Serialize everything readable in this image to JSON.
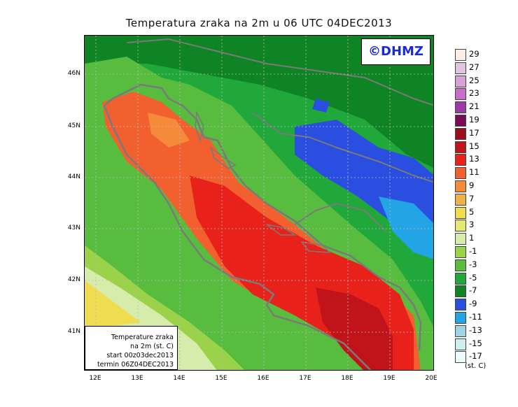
{
  "title": "Temperatura zraka na 2m u 06 UTC 04DEC2013",
  "logo": "©DHMZ",
  "info": {
    "line1": "Temperature zraka",
    "line2": "na 2m (st. C)",
    "line3": "start 00z03dec2013",
    "line4": "termin 06Z04DEC2013"
  },
  "axes": {
    "lat_labels": [
      "46N",
      "45N",
      "44N",
      "43N",
      "42N",
      "41N"
    ],
    "lon_labels": [
      "12E",
      "13E",
      "14E",
      "15E",
      "16E",
      "17E",
      "18E",
      "19E",
      "20E"
    ]
  },
  "legend": {
    "labels": [
      "29",
      "27",
      "25",
      "23",
      "21",
      "19",
      "17",
      "15",
      "13",
      "11",
      "9",
      "7",
      "5",
      "3",
      "1",
      "-1",
      "-3",
      "-5",
      "-7",
      "-9",
      "-11",
      "-13",
      "-15",
      "-17"
    ],
    "colors": [
      "#fbeee6",
      "#e0c4e2",
      "#d8a2d6",
      "#c86ec8",
      "#9e3aa8",
      "#7a0c56",
      "#9a0e1c",
      "#c0141a",
      "#e8221a",
      "#f26030",
      "#f48a3a",
      "#f2b04a",
      "#f0dc50",
      "#e6e874",
      "#d6ecaa",
      "#9ad24a",
      "#58bd3e",
      "#20a83a",
      "#0e8424",
      "#2a4ee0",
      "#23a4e4",
      "#9ed4e6",
      "#cdeff2",
      "#eefbfc"
    ],
    "unit": "(st. C)"
  },
  "colors": {
    "green_dark": "#0e8424",
    "green": "#20a83a",
    "green_light": "#58bd3e",
    "yellowgreen": "#9ad24a",
    "blue": "#2a4ee0",
    "lightblue": "#23a4e4",
    "sea_orange": "#f26030",
    "sea_red": "#e8221a",
    "sea_darkred": "#c0141a",
    "coast": "#7a7a7a"
  }
}
